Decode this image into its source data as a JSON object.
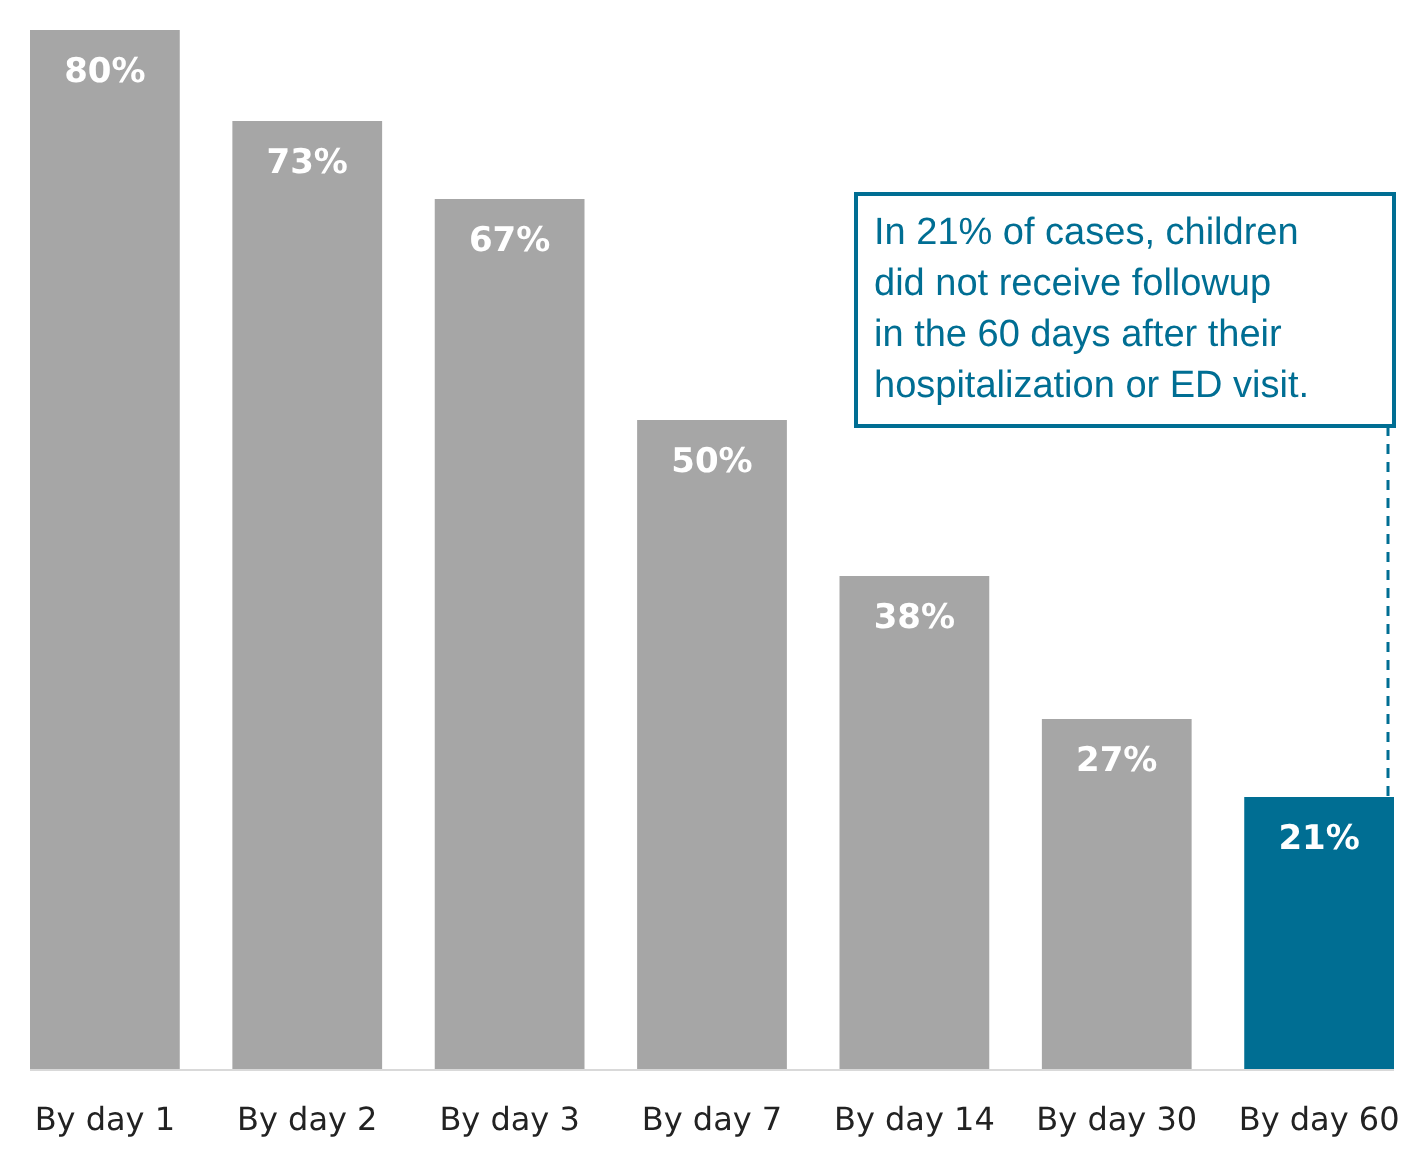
{
  "chart_data": {
    "type": "bar",
    "categories": [
      "By day 1",
      "By day 2",
      "By day 3",
      "By day 7",
      "By day 14",
      "By day 30",
      "By day 60"
    ],
    "values": [
      80,
      73,
      67,
      50,
      38,
      27,
      21
    ],
    "value_labels": [
      "80%",
      "73%",
      "67%",
      "50%",
      "38%",
      "27%",
      "21%"
    ],
    "colors": [
      "#a6a6a6",
      "#a6a6a6",
      "#a6a6a6",
      "#a6a6a6",
      "#a6a6a6",
      "#a6a6a6",
      "#006e93"
    ],
    "annotations": [
      "In 21% of cases, children\ndid not receive followup\nin the 60 days after their\nhospitalization or ED visit."
    ]
  }
}
